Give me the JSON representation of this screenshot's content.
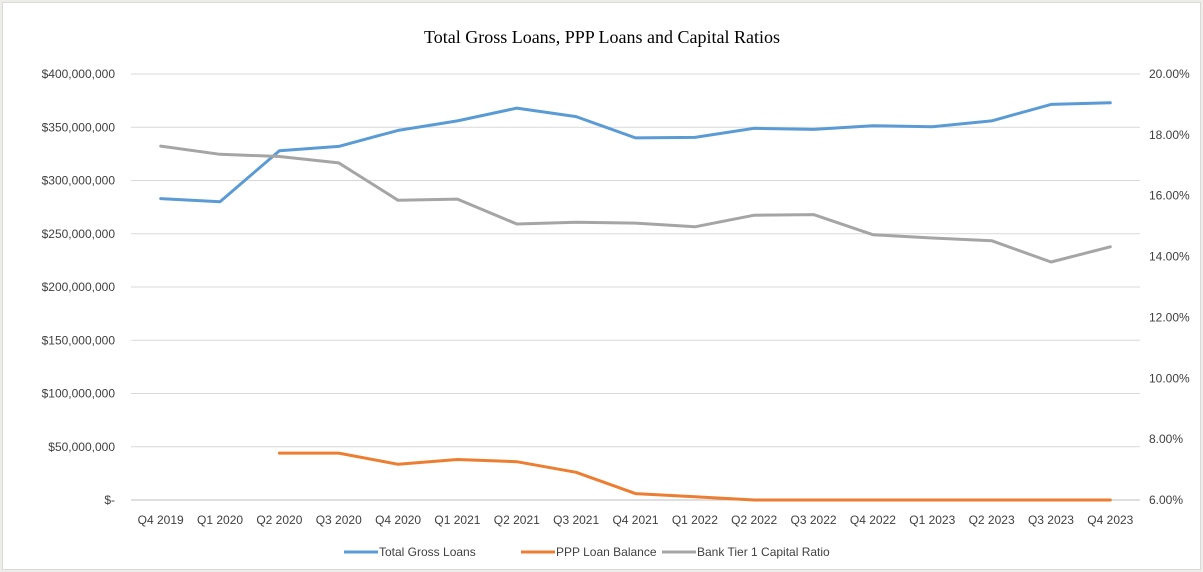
{
  "chart_data": {
    "type": "line",
    "title": "Total Gross Loans, PPP Loans and Capital Ratios",
    "categories": [
      "Q4 2019",
      "Q1 2020",
      "Q2 2020",
      "Q3 2020",
      "Q4 2020",
      "Q1 2021",
      "Q2 2021",
      "Q3 2021",
      "Q4 2021",
      "Q1 2022",
      "Q2 2022",
      "Q3 2022",
      "Q4 2022",
      "Q1 2023",
      "Q2 2023",
      "Q3 2023",
      "Q4 2023"
    ],
    "y_left": {
      "ylim": [
        0,
        400000000
      ],
      "ticks": [
        0,
        50000000,
        100000000,
        150000000,
        200000000,
        250000000,
        300000000,
        350000000,
        400000000
      ],
      "tick_labels": [
        "$-",
        "$50,000,000",
        "$100,000,000",
        "$150,000,000",
        "$200,000,000",
        "$250,000,000",
        "$300,000,000",
        "$350,000,000",
        "$400,000,000"
      ]
    },
    "y_right": {
      "ylim": [
        6.0,
        20.0
      ],
      "ticks": [
        6,
        8,
        10,
        12,
        14,
        16,
        18,
        20
      ],
      "tick_labels": [
        "6.00%",
        "8.00%",
        "10.00%",
        "12.00%",
        "14.00%",
        "16.00%",
        "18.00%",
        "20.00%"
      ]
    },
    "grid": true,
    "legend_position": "bottom",
    "series": [
      {
        "name": "Total Gross Loans",
        "axis": "left",
        "color": "#5b9bd5",
        "values": [
          283000000,
          280000000,
          328000000,
          332000000,
          347000000,
          356000000,
          368000000,
          360000000,
          340000000,
          340500000,
          349000000,
          348000000,
          351500000,
          350500000,
          356000000,
          371500000,
          373000000
        ]
      },
      {
        "name": "PPP Loan Balance",
        "axis": "left",
        "color": "#ed7d31",
        "values": [
          null,
          null,
          44000000,
          44000000,
          33500000,
          38000000,
          36000000,
          26000000,
          6000000,
          3000000,
          0,
          0,
          0,
          0,
          0,
          0,
          0
        ]
      },
      {
        "name": "Bank Tier 1 Capital Ratio",
        "axis": "right",
        "color": "#a5a5a5",
        "values": [
          17.63,
          17.36,
          17.29,
          17.08,
          15.85,
          15.89,
          15.07,
          15.13,
          15.1,
          14.98,
          15.36,
          15.38,
          14.72,
          14.61,
          14.52,
          13.82,
          14.32
        ]
      }
    ]
  }
}
